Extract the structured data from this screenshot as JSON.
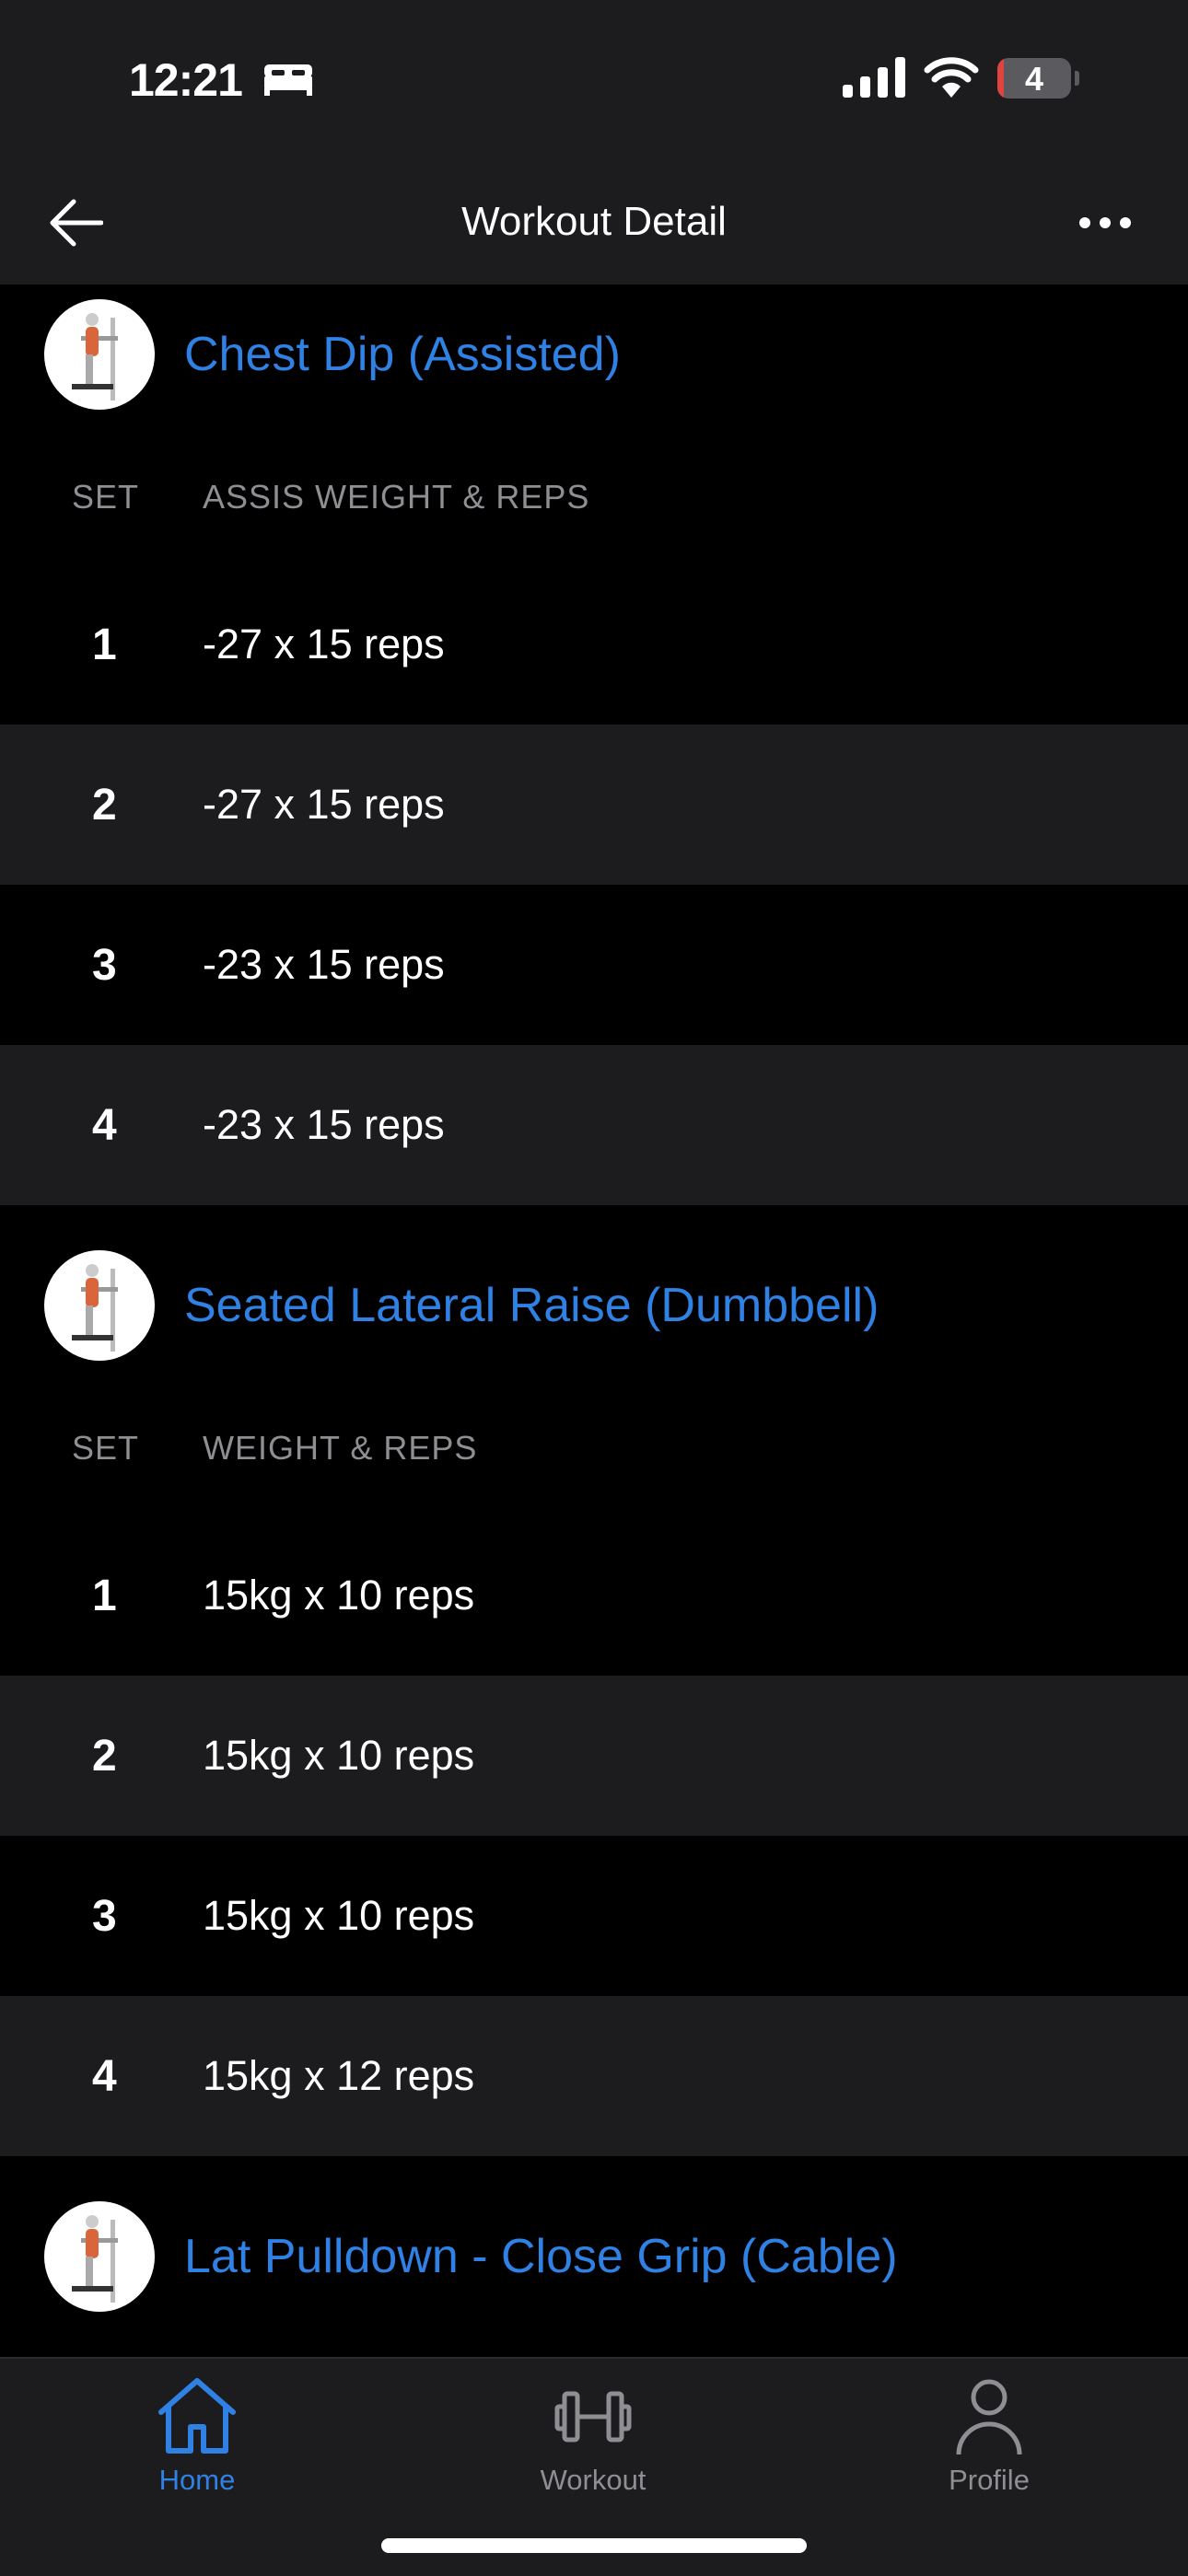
{
  "status_bar": {
    "time": "12:21",
    "battery": "4",
    "icons": [
      "bed-icon",
      "signal-icon",
      "wifi-icon",
      "battery-icon"
    ]
  },
  "nav": {
    "title": "Workout Detail",
    "back_icon": "arrow-left-icon",
    "more_icon": "ellipsis-icon"
  },
  "colors": {
    "accent": "#2f81e4",
    "background": "#000000",
    "surface": "#1c1c1e",
    "muted": "#8e8e93"
  },
  "exercises": [
    {
      "name": "Chest Dip (Assisted)",
      "col_set": "SET",
      "col_value": "ASSIS WEIGHT & REPS",
      "sets": [
        {
          "n": "1",
          "v": "-27 x 15 reps"
        },
        {
          "n": "2",
          "v": "-27 x 15 reps"
        },
        {
          "n": "3",
          "v": "-23 x 15 reps"
        },
        {
          "n": "4",
          "v": "-23 x 15 reps"
        }
      ]
    },
    {
      "name": "Seated Lateral Raise (Dumbbell)",
      "col_set": "SET",
      "col_value": "WEIGHT & REPS",
      "sets": [
        {
          "n": "1",
          "v": "15kg x 10 reps"
        },
        {
          "n": "2",
          "v": "15kg x 10 reps"
        },
        {
          "n": "3",
          "v": "15kg x 10 reps"
        },
        {
          "n": "4",
          "v": "15kg x 12 reps"
        }
      ]
    },
    {
      "name": "Lat Pulldown - Close Grip (Cable)"
    }
  ],
  "tabs": [
    {
      "label": "Home",
      "icon": "home-icon",
      "active": true
    },
    {
      "label": "Workout",
      "icon": "dumbbell-icon"
    },
    {
      "label": "Profile",
      "icon": "person-icon"
    }
  ]
}
